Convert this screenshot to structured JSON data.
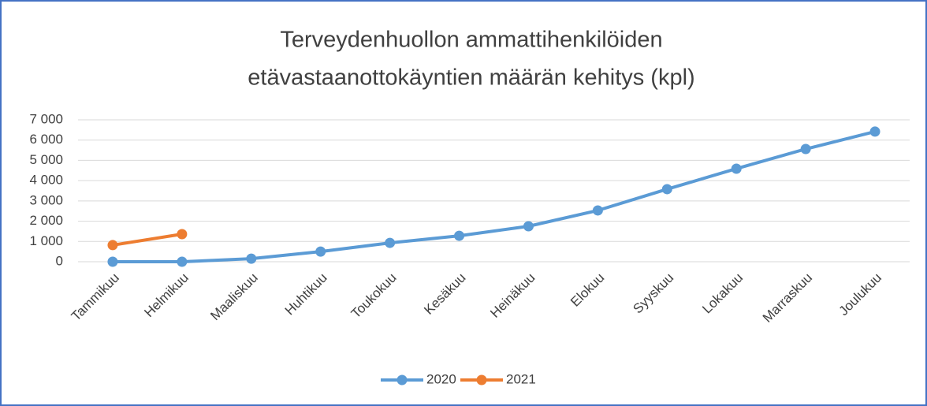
{
  "chart_data": {
    "type": "line",
    "title": [
      "Terveydenhuollon ammattihenkilöiden",
      "etävastaanottokäyntien määrän kehitys (kpl)"
    ],
    "categories": [
      "Tammikuu",
      "Helmikuu",
      "Maaliskuu",
      "Huhtikuu",
      "Toukokuu",
      "Kesäkuu",
      "Heinäkuu",
      "Elokuu",
      "Syyskuu",
      "Lokakuu",
      "Marraskuu",
      "Joulukuu"
    ],
    "series": [
      {
        "name": "2020",
        "color": "#5b9bd5",
        "values": [
          0,
          0,
          150,
          500,
          930,
          1280,
          1750,
          2530,
          3580,
          4590,
          5560,
          6420
        ]
      },
      {
        "name": "2021",
        "color": "#ed7d31",
        "values": [
          820,
          1360,
          null,
          null,
          null,
          null,
          null,
          null,
          null,
          null,
          null,
          null
        ]
      }
    ],
    "ylim": [
      0,
      7000
    ],
    "yticks": [
      0,
      {
        "value": 1000,
        "label": "1 000"
      },
      {
        "value": 2000,
        "label": "2 000"
      },
      {
        "value": 3000,
        "label": "3 000"
      },
      {
        "value": 4000,
        "label": "4 000"
      },
      {
        "value": 5000,
        "label": "5 000"
      },
      {
        "value": 6000,
        "label": "6 000"
      },
      {
        "value": 7000,
        "label": "7 000"
      }
    ],
    "grid": true,
    "legend": "bottom"
  }
}
